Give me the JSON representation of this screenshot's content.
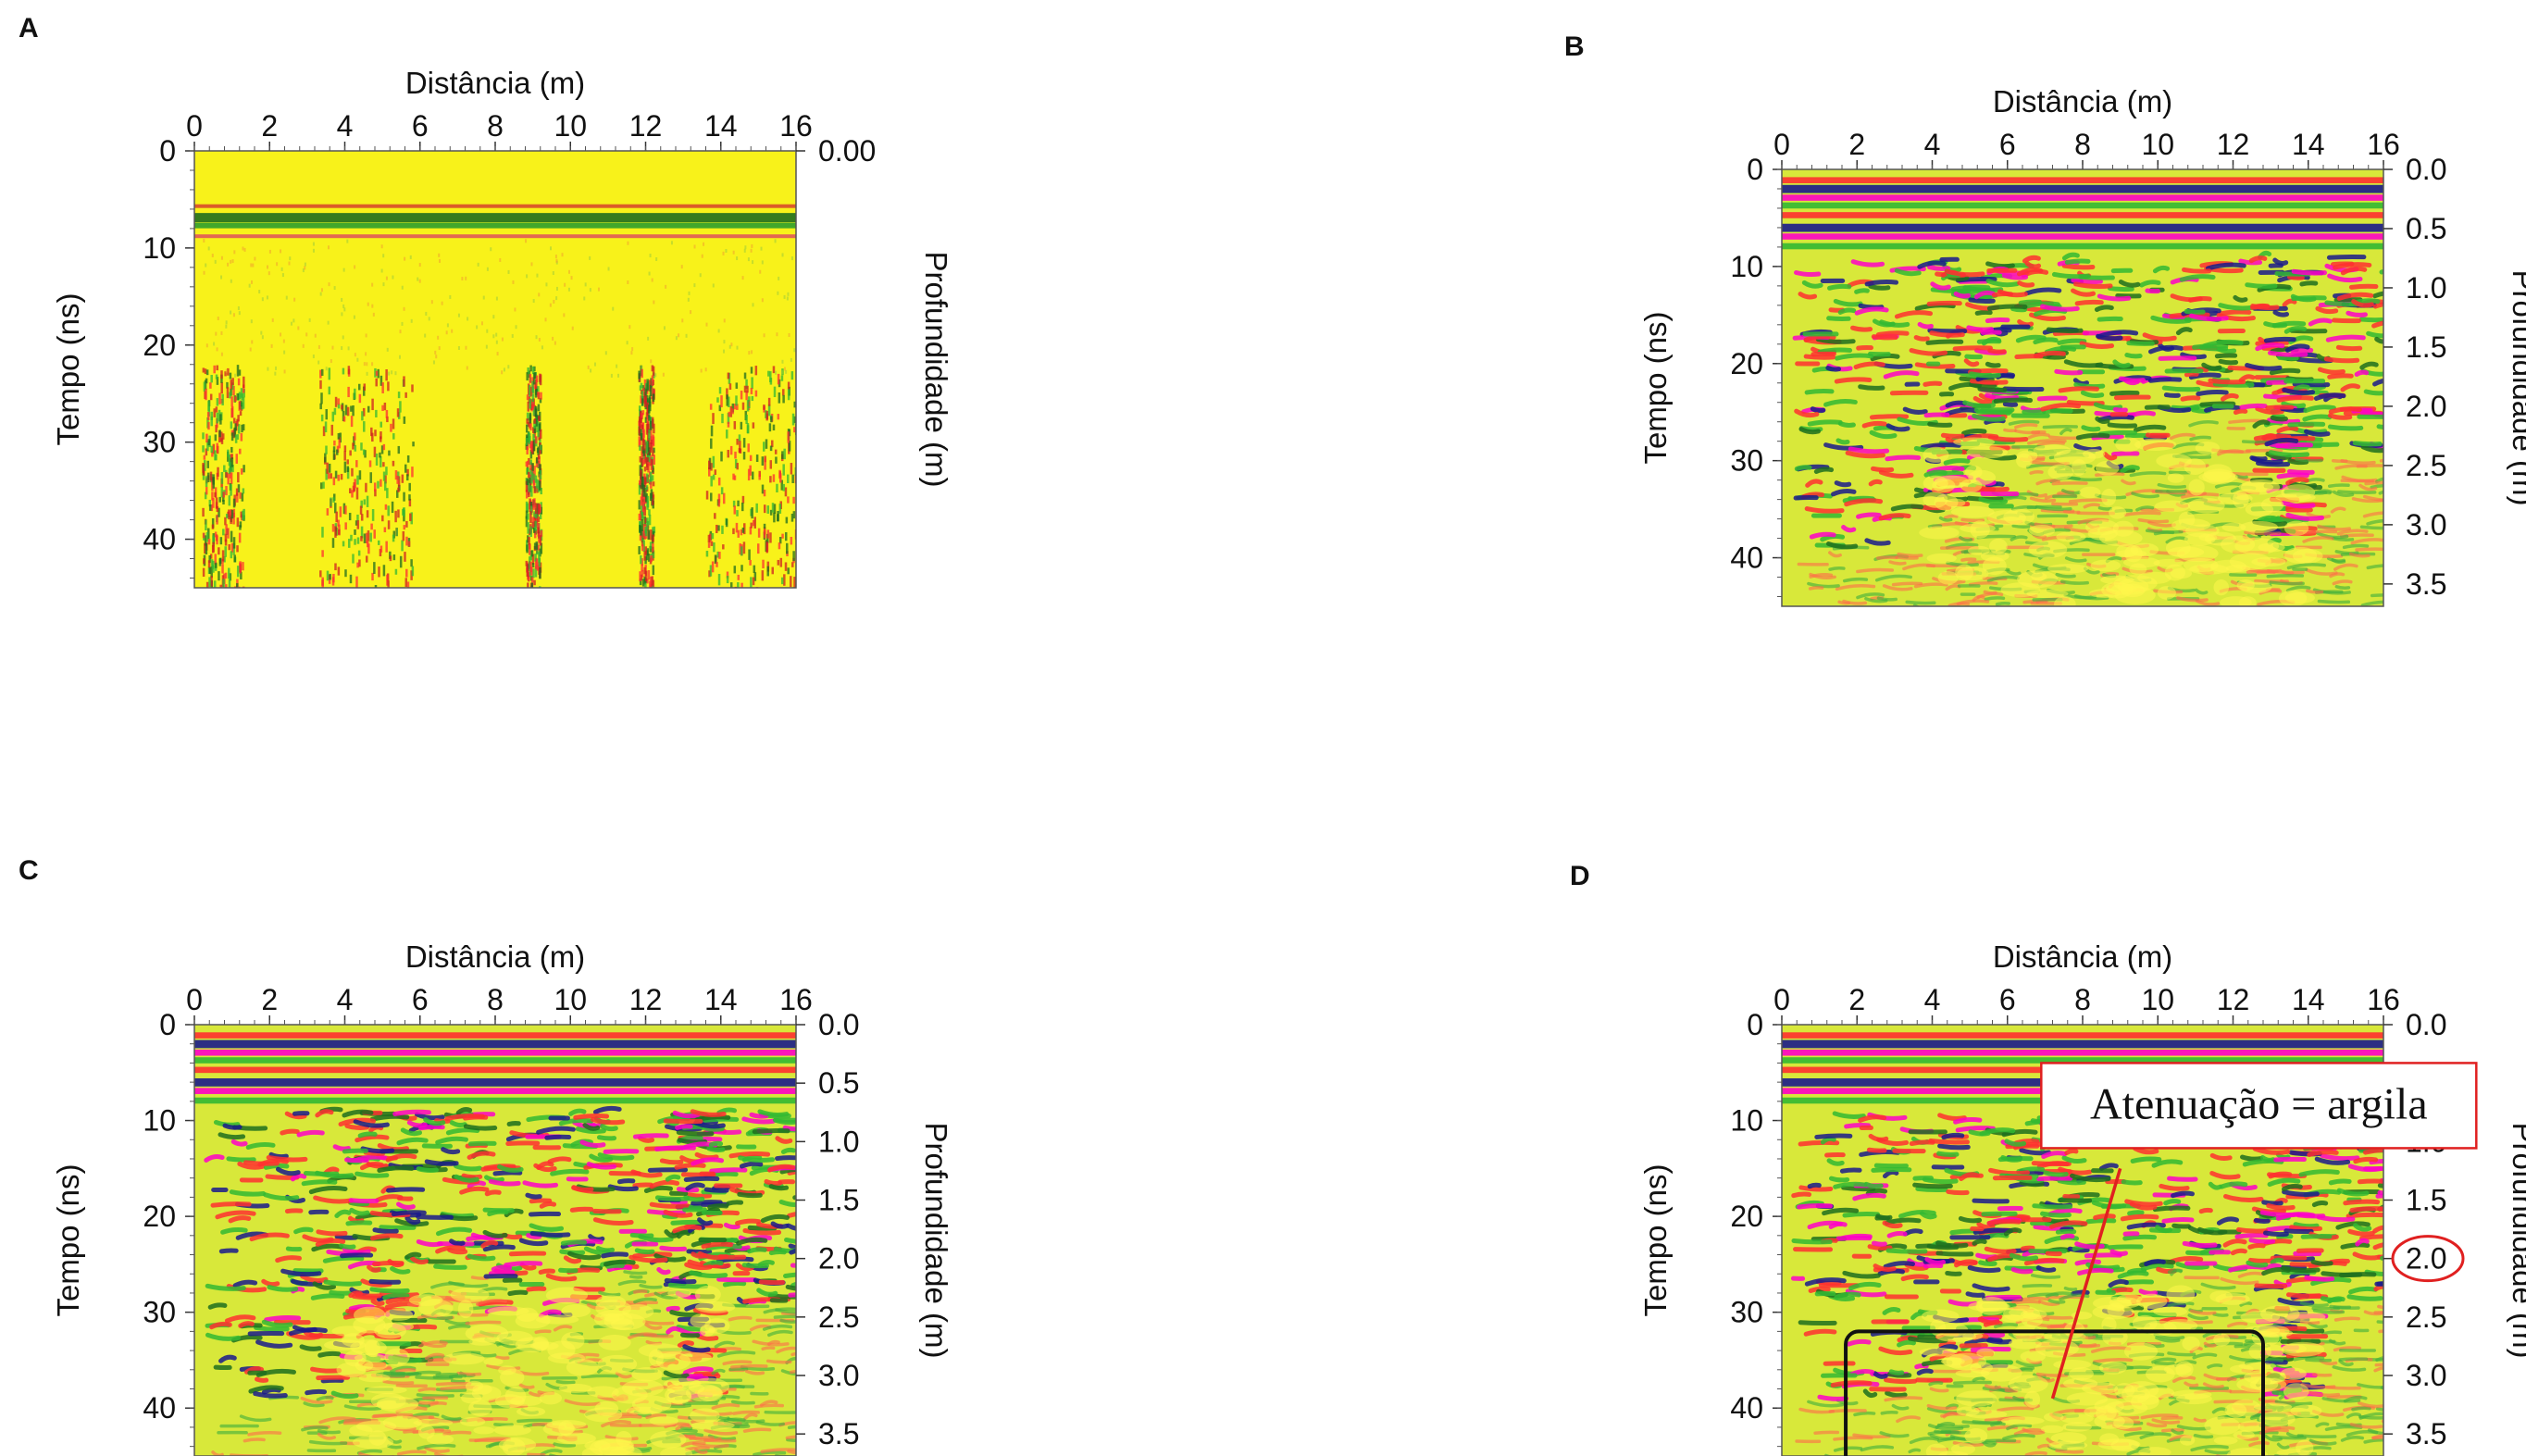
{
  "panels": [
    {
      "letter": "A"
    },
    {
      "letter": "B"
    },
    {
      "letter": "C"
    },
    {
      "letter": "D"
    }
  ],
  "chart_data": [
    {
      "type": "heatmap",
      "panel": "A",
      "title": "",
      "xlabel": "Distância (m)",
      "ylabel": "Tempo (ns)",
      "y2label": "Profundidade (m)",
      "xlim": [
        0,
        16
      ],
      "ylim": [
        0,
        45
      ],
      "xticks": [
        "0",
        "2",
        "4",
        "6",
        "8",
        "10",
        "12",
        "14",
        "16"
      ],
      "yticks": [
        "0",
        "10",
        "20",
        "30",
        "40"
      ],
      "y2ticks": [
        "0.00"
      ],
      "palette": [
        "#1a1a8c",
        "#ff00c8",
        "#ff3030",
        "#ffff00",
        "#33b833",
        "#1f6e1f"
      ],
      "description_values": {
        "direct_wave_ns": 6.5,
        "attenuation_onset_ns": 22
      }
    },
    {
      "type": "heatmap",
      "panel": "B",
      "title": "",
      "xlabel": "Distância (m)",
      "ylabel": "Tempo (ns)",
      "y2label": "Profundidade (m)",
      "xlim": [
        0,
        16
      ],
      "ylim": [
        0,
        45
      ],
      "xticks": [
        "0",
        "2",
        "4",
        "6",
        "8",
        "10",
        "12",
        "14",
        "16"
      ],
      "yticks": [
        "0",
        "10",
        "20",
        "30",
        "40"
      ],
      "y2ticks": [
        "0.0",
        "0.5",
        "1.0",
        "1.5",
        "2.0",
        "2.5",
        "3.0",
        "3.5"
      ],
      "y2_depth_per_10ns": 0.83
    },
    {
      "type": "heatmap",
      "panel": "C",
      "title": "",
      "xlabel": "Distância (m)",
      "ylabel": "Tempo (ns)",
      "y2label": "Profundidade (m)",
      "xlim": [
        0,
        16
      ],
      "ylim": [
        0,
        45
      ],
      "xticks": [
        "0",
        "2",
        "4",
        "6",
        "8",
        "10",
        "12",
        "14",
        "16"
      ],
      "yticks": [
        "0",
        "10",
        "20",
        "30",
        "40"
      ],
      "y2ticks": [
        "0.0",
        "0.5",
        "1.0",
        "1.5",
        "2.0",
        "2.5",
        "3.0",
        "3.5"
      ]
    },
    {
      "type": "heatmap",
      "panel": "D",
      "title": "",
      "xlabel": "Distância (m)",
      "ylabel": "Tempo (ns)",
      "y2label": "Profundidade (m)",
      "xlim": [
        0,
        16
      ],
      "ylim": [
        0,
        45
      ],
      "xticks": [
        "0",
        "2",
        "4",
        "6",
        "8",
        "10",
        "12",
        "14",
        "16"
      ],
      "yticks": [
        "0",
        "10",
        "20",
        "30",
        "40"
      ],
      "y2ticks": [
        "0.0",
        "0.5",
        "1.0",
        "1.5",
        "2.0",
        "2.5",
        "3.0",
        "3.5"
      ],
      "annotation": {
        "text": "Atenuação = argila",
        "highlighted_depth_tick": "2.0",
        "box_region": {
          "x_start": 1.7,
          "x_end": 12.8,
          "t_start": 32,
          "t_end": 45
        },
        "arrow_from": {
          "x": 7.2,
          "t": 39
        },
        "arrow_to": {
          "x": 9.0,
          "t": 15
        }
      }
    }
  ]
}
